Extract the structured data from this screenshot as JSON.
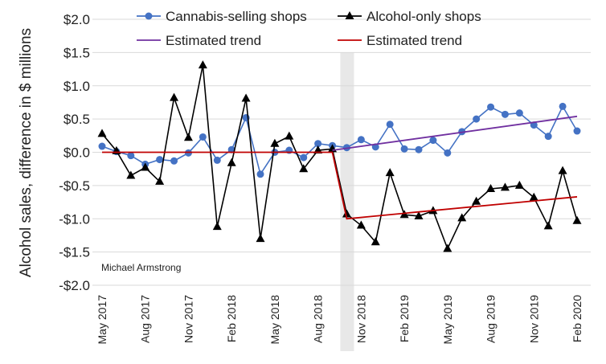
{
  "chart_data": {
    "type": "line",
    "ylabel": "Alcohol sales, difference in $ millions",
    "ylim": [
      -2.0,
      2.0
    ],
    "yticks": [
      "$2.0",
      "$1.5",
      "$1.0",
      "$0.5",
      "$0.0",
      "-$0.5",
      "-$1.0",
      "-$1.5",
      "-$2.0"
    ],
    "ytick_values": [
      2.0,
      1.5,
      1.0,
      0.5,
      0.0,
      -0.5,
      -1.0,
      -1.5,
      -2.0
    ],
    "grid": "horizontal",
    "legend_placement": "top",
    "annotation": "Michael Armstrong",
    "x": [
      "May 2017",
      "Jun 2017",
      "Jul 2017",
      "Aug 2017",
      "Sep 2017",
      "Oct 2017",
      "Nov 2017",
      "Dec 2017",
      "Jan 2018",
      "Feb 2018",
      "Mar 2018",
      "Apr 2018",
      "May 2018",
      "Jun 2018",
      "Jul 2018",
      "Aug 2018",
      "Sep 2018",
      "Oct 2018",
      "Nov 2018",
      "Dec 2018",
      "Jan 2019",
      "Feb 2019",
      "Mar 2019",
      "Apr 2019",
      "May 2019",
      "Jun 2019",
      "Jul 2019",
      "Aug 2019",
      "Sep 2019",
      "Oct 2019",
      "Nov 2019",
      "Dec 2019",
      "Jan 2020",
      "Feb 2020"
    ],
    "xticks": [
      "May 2017",
      "Aug 2017",
      "Nov 2017",
      "Feb 2018",
      "May 2018",
      "Aug 2018",
      "Nov 2018",
      "Feb 2019",
      "May 2019",
      "Aug 2019",
      "Nov 2019",
      "Feb 2020"
    ],
    "shaded_period": "Oct 2018",
    "series": [
      {
        "name": "Cannabis-selling shops",
        "color": "#4472C4",
        "marker": "circle",
        "values": [
          0.09,
          0.01,
          -0.05,
          -0.18,
          -0.11,
          -0.13,
          -0.01,
          0.23,
          -0.12,
          0.04,
          0.52,
          -0.33,
          0.0,
          0.03,
          -0.08,
          0.13,
          0.1,
          0.07,
          0.19,
          0.08,
          0.42,
          0.05,
          0.04,
          0.18,
          -0.01,
          0.31,
          0.5,
          0.68,
          0.57,
          0.59,
          0.41,
          0.24,
          0.69,
          0.32
        ]
      },
      {
        "name": "Alcohol-only shops",
        "color": "#000000",
        "marker": "triangle",
        "values": [
          0.28,
          0.02,
          -0.35,
          -0.23,
          -0.44,
          0.82,
          0.22,
          1.31,
          -1.12,
          -0.16,
          0.81,
          -1.3,
          0.13,
          0.24,
          -0.25,
          0.03,
          0.05,
          -0.93,
          -1.1,
          -1.35,
          -0.31,
          -0.94,
          -0.96,
          -0.88,
          -1.45,
          -0.99,
          -0.74,
          -0.55,
          -0.53,
          -0.5,
          -0.68,
          -1.11,
          -0.28,
          -1.03
        ]
      },
      {
        "name": "Estimated trend",
        "color": "#7030A0",
        "marker": "none",
        "points": [
          [
            "Sep 2018",
            0.03
          ],
          [
            "Feb 2020",
            0.54
          ]
        ]
      },
      {
        "name": "Estimated trend",
        "color": "#C00000",
        "marker": "none",
        "points": [
          [
            "May 2017",
            0.0
          ],
          [
            "Sep 2018",
            0.0
          ],
          [
            "Oct 2018",
            -1.0
          ],
          [
            "Feb 2020",
            -0.67
          ]
        ]
      }
    ]
  }
}
